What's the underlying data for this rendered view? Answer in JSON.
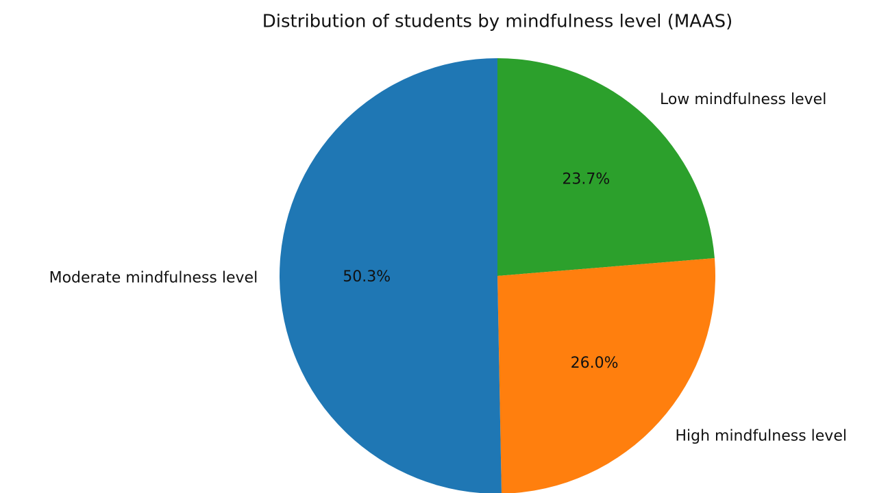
{
  "chart_data": {
    "type": "pie",
    "title": "Distribution of students by mindfulness level (MAAS)",
    "categories": [
      "Low mindfulness level",
      "High mindfulness level",
      "Moderate mindfulness level"
    ],
    "values": [
      23.7,
      26.0,
      50.3
    ],
    "value_labels": [
      "23.7%",
      "26.0%",
      "50.3%"
    ],
    "colors": [
      "#2ca02c",
      "#ff7f0e",
      "#1f77b4"
    ]
  }
}
